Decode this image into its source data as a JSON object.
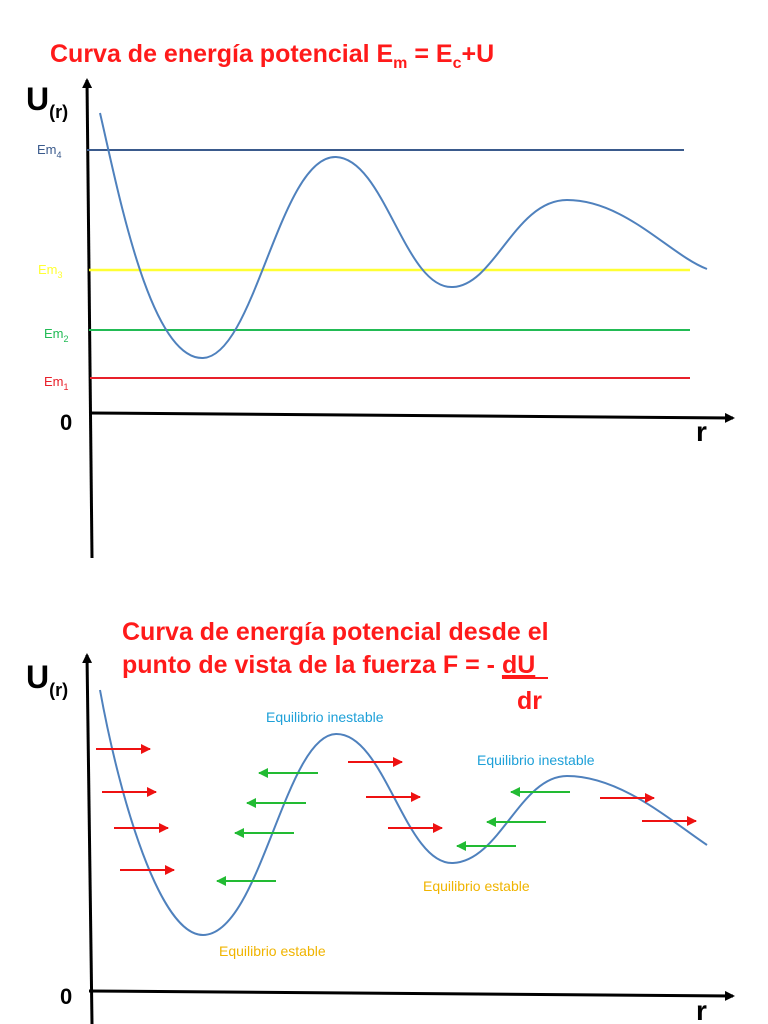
{
  "colors": {
    "title": "#ff1a1a",
    "curve": "#4f81bd",
    "em4": "#3a5a8c",
    "em3": "#ffff33",
    "em2": "#22bb55",
    "em1": "#e8202a",
    "force_right": "#ee1111",
    "force_left": "#22bb33",
    "unstable": "#1ea0d8",
    "stable": "#f0b400"
  },
  "diagram1": {
    "title_prefix": "Curva de energía potencial  E",
    "title_sub1": "m",
    "title_mid": " = E",
    "title_sub2": "c",
    "title_suffix": "+U",
    "y_label": "U",
    "y_label_sub": "(r)",
    "x_label": "r",
    "origin_label": "0",
    "levels": [
      {
        "name": "Em",
        "sub": "4"
      },
      {
        "name": "Em",
        "sub": "3"
      },
      {
        "name": "Em",
        "sub": "2"
      },
      {
        "name": "Em",
        "sub": "1"
      }
    ]
  },
  "diagram2": {
    "title_line1": "Curva de energía potencial desde el",
    "title_line2": "punto de vista de la fuerza F = - ",
    "title_numerator": "dU",
    "title_denominator": "dr",
    "y_label": "U",
    "y_label_sub": "(r)",
    "x_label": "r",
    "origin_label": "0",
    "annotations": {
      "unstable_1": "Equilibrio inestable",
      "unstable_2": "Equilibrio inestable",
      "stable_1": "Equilibrio estable",
      "stable_2": "Equilibrio estable"
    }
  }
}
